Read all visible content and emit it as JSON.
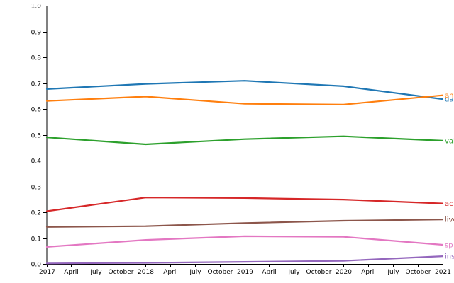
{
  "chart_data": {
    "type": "line",
    "x_type": "date",
    "xlim": [
      "2017-01-01",
      "2021-01-01"
    ],
    "ylim": [
      0,
      1
    ],
    "y_ticks": [
      0.0,
      0.1,
      0.2,
      0.3,
      0.4,
      0.5,
      0.6,
      0.7,
      0.8,
      0.9,
      1.0
    ],
    "y_tick_labels": [
      "0.0",
      "0.1",
      "0.2",
      "0.3",
      "0.4",
      "0.5",
      "0.6",
      "0.7",
      "0.8",
      "0.9",
      "1.0"
    ],
    "x_ticks": [
      "2017-01-01",
      "2017-04-01",
      "2017-07-01",
      "2017-10-01",
      "2018-01-01",
      "2018-04-01",
      "2018-07-01",
      "2018-10-01",
      "2019-01-01",
      "2019-04-01",
      "2019-07-01",
      "2019-10-01",
      "2020-01-01",
      "2020-04-01",
      "2020-07-01",
      "2020-10-01",
      "2021-01-01"
    ],
    "x_tick_labels": [
      "2017",
      "April",
      "July",
      "October",
      "2018",
      "April",
      "July",
      "October",
      "2019",
      "April",
      "July",
      "October",
      "2020",
      "April",
      "July",
      "October",
      "2021"
    ],
    "grid": false,
    "x": [
      "2017-01-01",
      "2018-01-01",
      "2019-01-01",
      "2020-01-01",
      "2021-01-01"
    ],
    "series": [
      {
        "name": "da",
        "color": "#1f77b4",
        "values": [
          0.677,
          0.697,
          0.709,
          0.688,
          0.638
        ]
      },
      {
        "name": "an",
        "color": "#ff7f0e",
        "values": [
          0.631,
          0.648,
          0.62,
          0.617,
          0.653
        ]
      },
      {
        "name": "val",
        "color": "#2ca02c",
        "values": [
          0.49,
          0.463,
          0.483,
          0.494,
          0.477
        ]
      },
      {
        "name": "ac",
        "color": "#d62728",
        "values": [
          0.204,
          0.257,
          0.255,
          0.249,
          0.234
        ]
      },
      {
        "name": "live",
        "color": "#8c564b",
        "values": [
          0.143,
          0.146,
          0.158,
          0.167,
          0.172
        ]
      },
      {
        "name": "sp",
        "color": "#e377c2",
        "values": [
          0.066,
          0.093,
          0.107,
          0.105,
          0.074
        ]
      },
      {
        "name": "ins",
        "color": "#9467bd",
        "values": [
          0.002,
          0.004,
          0.008,
          0.012,
          0.03
        ]
      }
    ]
  }
}
